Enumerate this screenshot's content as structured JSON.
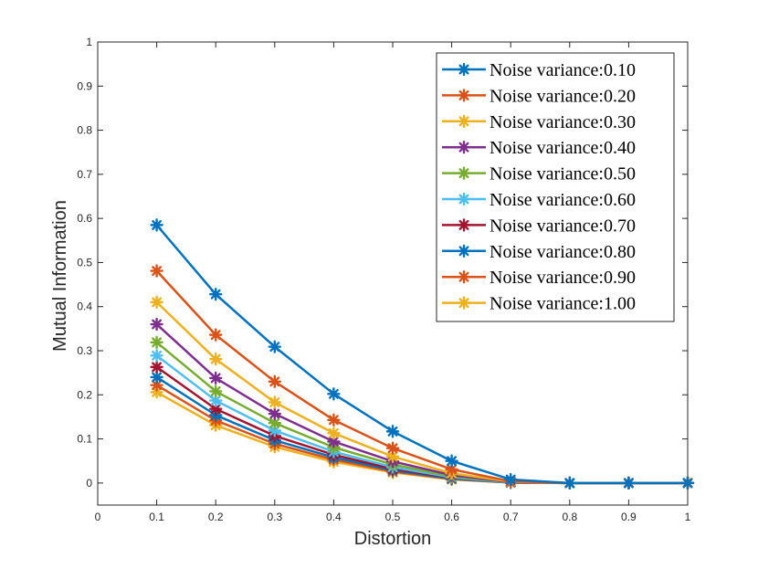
{
  "chart_data": {
    "type": "line",
    "title": "",
    "xlabel": "Distortion",
    "ylabel": "Mutual Information",
    "xlim": [
      0,
      1
    ],
    "ylim": [
      0,
      1
    ],
    "y_axis_min": -0.05,
    "xticks": [
      0,
      0.1,
      0.2,
      0.3,
      0.4,
      0.5,
      0.6,
      0.7,
      0.8,
      0.9,
      1
    ],
    "xtick_labels": [
      "0",
      "0.1",
      "0.2",
      "0.3",
      "0.4",
      "0.5",
      "0.6",
      "0.7",
      "0.8",
      "0.9",
      "1"
    ],
    "yticks": [
      0,
      0.1,
      0.2,
      0.3,
      0.4,
      0.5,
      0.6,
      0.7,
      0.8,
      0.9,
      1
    ],
    "ytick_labels": [
      "0",
      "0.1",
      "0.2",
      "0.3",
      "0.4",
      "0.5",
      "0.6",
      "0.7",
      "0.8",
      "0.9",
      "1"
    ],
    "grid": false,
    "legend_position": "top-right",
    "marker": "asterisk",
    "x": [
      0.1,
      0.2,
      0.3,
      0.4,
      0.5,
      0.6,
      0.7,
      0.8,
      0.9,
      1.0
    ],
    "series": [
      {
        "name": "Noise variance:0.10",
        "color": "#0072BD",
        "values": [
          0.585,
          0.428,
          0.309,
          0.202,
          0.117,
          0.05,
          0.008,
          0,
          0,
          0
        ]
      },
      {
        "name": "Noise variance:0.20",
        "color": "#D95319",
        "values": [
          0.481,
          0.336,
          0.23,
          0.143,
          0.079,
          0.031,
          0.004,
          0,
          0,
          0
        ]
      },
      {
        "name": "Noise variance:0.30",
        "color": "#EDB120",
        "values": [
          0.41,
          0.281,
          0.183,
          0.113,
          0.06,
          0.022,
          0.003,
          0,
          0,
          0
        ]
      },
      {
        "name": "Noise variance:0.40",
        "color": "#7E2F8E",
        "values": [
          0.36,
          0.238,
          0.157,
          0.094,
          0.049,
          0.018,
          0.002,
          0,
          0,
          0
        ]
      },
      {
        "name": "Noise variance:0.50",
        "color": "#77AC30",
        "values": [
          0.319,
          0.208,
          0.136,
          0.081,
          0.042,
          0.015,
          0.002,
          0,
          0,
          0
        ]
      },
      {
        "name": "Noise variance:0.60",
        "color": "#4DBEEE",
        "values": [
          0.289,
          0.187,
          0.119,
          0.071,
          0.036,
          0.013,
          0.001,
          0,
          0,
          0
        ]
      },
      {
        "name": "Noise variance:0.70",
        "color": "#A2142F",
        "values": [
          0.263,
          0.168,
          0.107,
          0.064,
          0.032,
          0.012,
          0.001,
          0,
          0,
          0
        ]
      },
      {
        "name": "Noise variance:0.80",
        "color": "#0072BD",
        "values": [
          0.24,
          0.154,
          0.097,
          0.058,
          0.029,
          0.01,
          0.001,
          0,
          0,
          0
        ]
      },
      {
        "name": "Noise variance:0.90",
        "color": "#D95319",
        "values": [
          0.222,
          0.142,
          0.089,
          0.053,
          0.026,
          0.009,
          0.001,
          0,
          0,
          0
        ]
      },
      {
        "name": "Noise variance:1.00",
        "color": "#EDB120",
        "values": [
          0.206,
          0.131,
          0.082,
          0.048,
          0.024,
          0.008,
          0.001,
          0,
          0,
          0
        ]
      }
    ]
  }
}
